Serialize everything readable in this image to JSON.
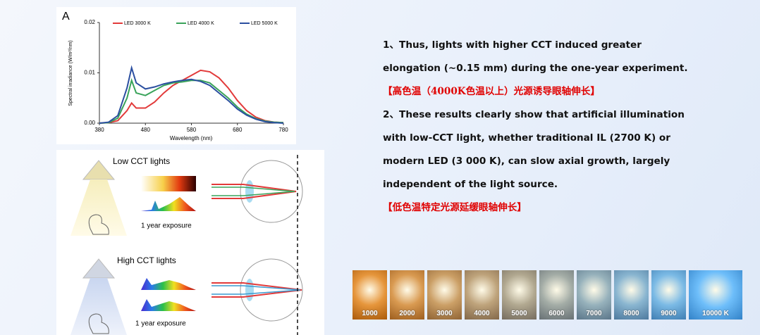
{
  "chart_data": {
    "type": "line",
    "panel_label": "A",
    "ylabel": "Spectral irradiance (W/m²/nm)",
    "xlabel": "Wavelength (nm)",
    "x": [
      380,
      400,
      420,
      440,
      450,
      460,
      480,
      500,
      520,
      540,
      560,
      580,
      600,
      620,
      640,
      660,
      680,
      700,
      720,
      740,
      760,
      780
    ],
    "series": [
      {
        "name": "LED 3000 K",
        "color": "#e23a3a",
        "values": [
          0,
          0.0001,
          0.0005,
          0.0025,
          0.004,
          0.003,
          0.003,
          0.0042,
          0.006,
          0.0075,
          0.0085,
          0.0095,
          0.0105,
          0.0102,
          0.009,
          0.007,
          0.0045,
          0.0025,
          0.0012,
          0.0005,
          0.0002,
          0.0001
        ]
      },
      {
        "name": "LED 4000 K",
        "color": "#3aa35a",
        "values": [
          0,
          0.0001,
          0.001,
          0.005,
          0.0085,
          0.006,
          0.0055,
          0.0065,
          0.0075,
          0.008,
          0.0082,
          0.0085,
          0.0085,
          0.008,
          0.0065,
          0.005,
          0.0032,
          0.0018,
          0.0009,
          0.0004,
          0.0002,
          0.0001
        ]
      },
      {
        "name": "LED 5000 K",
        "color": "#2b4fa0",
        "values": [
          0,
          0.0002,
          0.0015,
          0.007,
          0.011,
          0.008,
          0.0068,
          0.0072,
          0.0078,
          0.0082,
          0.0085,
          0.0087,
          0.0083,
          0.0075,
          0.006,
          0.0045,
          0.0028,
          0.0016,
          0.0008,
          0.0003,
          0.0001,
          0
        ]
      }
    ],
    "xlim": [
      380,
      780
    ],
    "xticks": [
      380,
      480,
      580,
      680,
      780
    ],
    "ylim": [
      0,
      0.02
    ],
    "yticks": [
      {
        "value": 0,
        "label": "0.00"
      },
      0.01,
      0.02
    ]
  },
  "diagram": {
    "low": {
      "title": "Low CCT lights",
      "caption": "1 year exposure"
    },
    "high": {
      "title": "High CCT lights",
      "caption": "1 year exposure"
    }
  },
  "text": {
    "items": [
      {
        "body": "1、Thus, lights with higher CCT induced greater elongation (~0.15 mm) during the one-year experiment.",
        "note": "【高色温（4000K色温以上）光源诱导眼轴伸长】"
      },
      {
        "body": "2、These results clearly show that artificial illumination with low-CCT light, whether traditional IL (2700 K) or modern LED (3 000 K), can slow axial growth, largely independent of the light source.",
        "note": "【低色温特定光源延缓眼轴伸长】"
      }
    ]
  },
  "cct_strip": {
    "labels": [
      "1000",
      "2000",
      "3000",
      "4000",
      "5000",
      "6000",
      "7000",
      "8000",
      "9000",
      "10000 K"
    ]
  }
}
